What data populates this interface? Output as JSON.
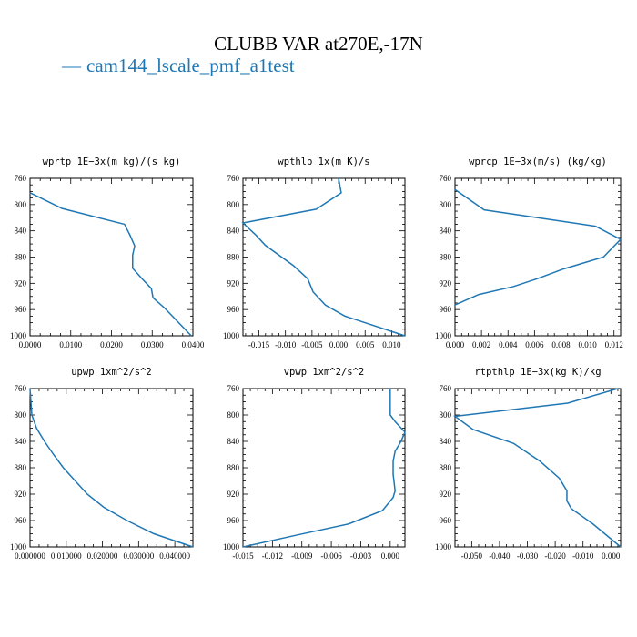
{
  "title": "CLUBB VAR at270E,-17N",
  "legend": {
    "dash": "—",
    "label": "cam144_lscale_pmf_a1test",
    "color": "#1f77b4"
  },
  "chart_data": [
    {
      "type": "line",
      "title": "wprtp  1E−3x(m kg)/(s kg)",
      "xlim": [
        0,
        0.04
      ],
      "ylim": [
        760,
        1000
      ],
      "yticks": [
        760,
        800,
        840,
        880,
        920,
        960,
        1000
      ],
      "xticks": [
        {
          "v": 0,
          "label": "0.0000"
        },
        {
          "v": 0.01,
          "label": "0.0100"
        },
        {
          "v": 0.02,
          "label": "0.0200"
        },
        {
          "v": 0.03,
          "label": "0.0300"
        },
        {
          "v": 0.04,
          "label": "0.0400"
        }
      ],
      "series": [
        {
          "color": "#1f77b4",
          "x": [
            0.0,
            0.0079,
            0.0232,
            0.0245,
            0.0257,
            0.0252,
            0.0252,
            0.0275,
            0.0298,
            0.0302,
            0.0331,
            0.0396
          ],
          "y": [
            782,
            806,
            830,
            846,
            863,
            877,
            897,
            913,
            928,
            942,
            958,
            1000
          ]
        }
      ]
    },
    {
      "type": "line",
      "title": "wpthlp  1x(m K)/s",
      "xlim": [
        -0.018,
        0.0125
      ],
      "ylim": [
        760,
        1000
      ],
      "yticks": [
        760,
        800,
        840,
        880,
        920,
        960,
        1000
      ],
      "xticks": [
        {
          "v": -0.015,
          "label": "-0.015"
        },
        {
          "v": -0.01,
          "label": "-0.010"
        },
        {
          "v": -0.005,
          "label": "-0.005"
        },
        {
          "v": 0,
          "label": "0.000"
        },
        {
          "v": 0.005,
          "label": "0.005"
        },
        {
          "v": 0.01,
          "label": "0.010"
        }
      ],
      "series": [
        {
          "color": "#1f77b4",
          "x": [
            0.0,
            0.0005,
            -0.0042,
            -0.018,
            -0.0155,
            -0.0138,
            -0.0085,
            -0.0058,
            -0.0048,
            -0.0025,
            0.0012,
            0.0125
          ],
          "y": [
            760,
            782,
            807,
            828,
            847,
            862,
            893,
            913,
            933,
            953,
            970,
            1000
          ]
        }
      ]
    },
    {
      "type": "line",
      "title": "wprcp  1E−3x(m/s) (kg/kg)",
      "xlim": [
        0,
        0.0125
      ],
      "ylim": [
        760,
        1000
      ],
      "yticks": [
        760,
        800,
        840,
        880,
        920,
        960,
        1000
      ],
      "xticks": [
        {
          "v": 0,
          "label": "0.000"
        },
        {
          "v": 0.002,
          "label": "0.002"
        },
        {
          "v": 0.004,
          "label": "0.004"
        },
        {
          "v": 0.006,
          "label": "0.006"
        },
        {
          "v": 0.008,
          "label": "0.008"
        },
        {
          "v": 0.01,
          "label": "0.010"
        },
        {
          "v": 0.012,
          "label": "0.012"
        }
      ],
      "series": [
        {
          "color": "#1f77b4",
          "x": [
            0.0,
            0.0022,
            0.0106,
            0.0125,
            0.0112,
            0.0082,
            0.0062,
            0.0044,
            0.0018,
            0.0
          ],
          "y": [
            777,
            808,
            833,
            853,
            880,
            898,
            913,
            925,
            937,
            953
          ]
        }
      ]
    },
    {
      "type": "line",
      "title": "upwp  1xm^2/s^2",
      "xlim": [
        0,
        0.045
      ],
      "ylim": [
        760,
        1000
      ],
      "yticks": [
        760,
        800,
        840,
        880,
        920,
        960,
        1000
      ],
      "xticks": [
        {
          "v": 0,
          "label": "0.000000"
        },
        {
          "v": 0.01,
          "label": "0.010000"
        },
        {
          "v": 0.02,
          "label": "0.020000"
        },
        {
          "v": 0.03,
          "label": "0.030000"
        },
        {
          "v": 0.04,
          "label": "0.040000"
        }
      ],
      "series": [
        {
          "color": "#1f77b4",
          "x": [
            0.0,
            0.0005,
            0.0018,
            0.004,
            0.0065,
            0.0092,
            0.0125,
            0.0158,
            0.0204,
            0.0268,
            0.0342,
            0.045
          ],
          "y": [
            760,
            800,
            820,
            840,
            860,
            880,
            900,
            920,
            940,
            960,
            980,
            1000
          ]
        }
      ]
    },
    {
      "type": "line",
      "title": "vpwp  1xm^2/s^2",
      "xlim": [
        -0.015,
        0.0015
      ],
      "ylim": [
        760,
        1000
      ],
      "yticks": [
        760,
        800,
        840,
        880,
        920,
        960,
        1000
      ],
      "xticks": [
        {
          "v": -0.015,
          "label": "-0.015"
        },
        {
          "v": -0.012,
          "label": "-0.012"
        },
        {
          "v": -0.009,
          "label": "-0.009"
        },
        {
          "v": -0.006,
          "label": "-0.006"
        },
        {
          "v": -0.003,
          "label": "-0.003"
        },
        {
          "v": 0,
          "label": "0.000"
        }
      ],
      "series": [
        {
          "color": "#1f77b4",
          "x": [
            0.0,
            0.0,
            0.0005,
            0.0015,
            0.0011,
            0.0005,
            0.0003,
            0.0003,
            0.0005,
            0.0003,
            -0.0008,
            -0.0042,
            -0.0095,
            -0.015
          ],
          "y": [
            760,
            800,
            810,
            826,
            840,
            855,
            870,
            890,
            915,
            925,
            945,
            965,
            982,
            1000
          ]
        }
      ]
    },
    {
      "type": "line",
      "title": "rtpthlp  1E−3x(kg K)/kg",
      "xlim": [
        -0.056,
        0.0035
      ],
      "ylim": [
        760,
        1000
      ],
      "yticks": [
        760,
        800,
        840,
        880,
        920,
        960,
        1000
      ],
      "xticks": [
        {
          "v": -0.05,
          "label": "-0.050"
        },
        {
          "v": -0.04,
          "label": "-0.040"
        },
        {
          "v": -0.03,
          "label": "-0.030"
        },
        {
          "v": -0.02,
          "label": "-0.020"
        },
        {
          "v": -0.01,
          "label": "-0.010"
        },
        {
          "v": 0,
          "label": "0.000"
        }
      ],
      "series": [
        {
          "color": "#1f77b4",
          "x": [
            0.0025,
            -0.0155,
            -0.056,
            -0.0495,
            -0.035,
            -0.0255,
            -0.0185,
            -0.0158,
            -0.0158,
            -0.0142,
            -0.0065,
            0.0035
          ],
          "y": [
            760,
            782,
            802,
            822,
            843,
            870,
            896,
            915,
            930,
            942,
            965,
            1000
          ]
        }
      ]
    }
  ]
}
